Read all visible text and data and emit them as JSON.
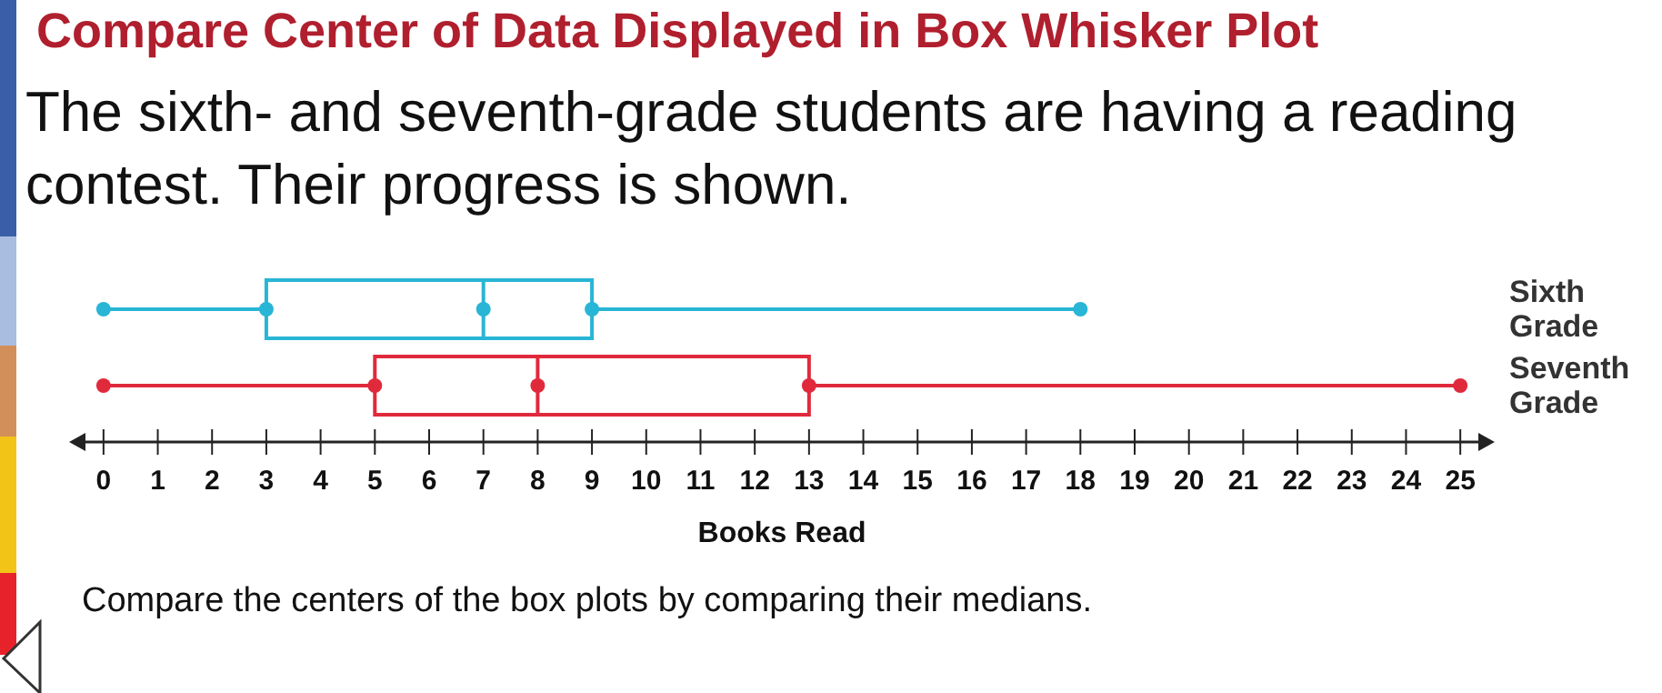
{
  "chart_data": {
    "type": "box",
    "orientation": "horizontal",
    "title": "Compare Center of Data Displayed in Box Whisker Plot",
    "subtitle": "The sixth- and seventh-grade students are having a reading contest. Their progress is shown.",
    "xlabel": "Books Read",
    "categories": [
      "Sixth Grade",
      "Seventh Grade"
    ],
    "colors": [
      "#29b5d5",
      "#e02a3c"
    ],
    "boxes": [
      {
        "low": 0,
        "q1": 3,
        "median": 7,
        "q3": 9,
        "high": 18
      },
      {
        "low": 0,
        "q1": 5,
        "median": 8,
        "q3": 13,
        "high": 25
      }
    ],
    "series": [
      {
        "type": "scatter",
        "color": "#29b5d5",
        "x": [
          "Sixth Grade",
          "Sixth Grade",
          "Sixth Grade",
          "Sixth Grade",
          "Sixth Grade"
        ],
        "values": [
          0,
          3,
          7,
          9,
          18
        ]
      },
      {
        "type": "scatter",
        "color": "#e02a3c",
        "x": [
          "Seventh Grade",
          "Seventh Grade",
          "Seventh Grade",
          "Seventh Grade",
          "Seventh Grade"
        ],
        "values": [
          0,
          5,
          8,
          13,
          25
        ]
      }
    ],
    "xlim": [
      -0.5,
      25.5
    ],
    "xticks": [
      0,
      1,
      2,
      3,
      4,
      5,
      6,
      7,
      8,
      9,
      10,
      11,
      12,
      13,
      14,
      15,
      16,
      17,
      18,
      19,
      20,
      21,
      22,
      23,
      24,
      25
    ],
    "annotations": [
      "Compare the centers of the box plots by comparing their medians."
    ]
  }
}
